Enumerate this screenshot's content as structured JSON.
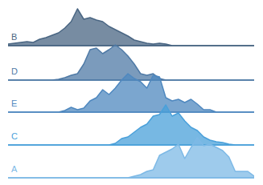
{
  "chart_data": {
    "type": "ridgeline",
    "x": [
      0,
      1,
      2,
      3,
      4,
      5,
      6,
      7,
      8,
      9,
      10,
      11,
      12,
      13,
      14,
      15,
      16,
      17,
      18,
      19,
      20,
      21,
      22,
      23,
      24,
      25,
      26,
      27,
      28,
      29,
      30,
      31,
      32,
      33,
      34,
      35,
      36,
      37,
      38,
      39
    ],
    "xlim": [
      0,
      39
    ],
    "ylim": [
      0,
      50
    ],
    "tick_labels": false,
    "grid": false,
    "series": [
      {
        "name": "B",
        "color": "#4a6683",
        "values": [
          2,
          3,
          4,
          5,
          4,
          8,
          10,
          13,
          16,
          22,
          30,
          46,
          33,
          35,
          32,
          30,
          24,
          20,
          16,
          12,
          7,
          5,
          3,
          2,
          3,
          2,
          0,
          0,
          0,
          0,
          0,
          0,
          0,
          0,
          0,
          0,
          0,
          0,
          0,
          0
        ]
      },
      {
        "name": "D",
        "color": "#4f7aa6",
        "values": [
          0,
          0,
          0,
          0,
          0,
          0,
          0,
          0,
          1,
          3,
          6,
          8,
          20,
          38,
          40,
          33,
          38,
          44,
          38,
          30,
          20,
          8,
          6,
          8,
          2,
          0,
          0,
          0,
          0,
          0,
          0,
          0,
          0,
          0,
          0,
          0,
          0,
          0,
          0,
          0
        ]
      },
      {
        "name": "E",
        "color": "#4f88bf",
        "values": [
          0,
          0,
          0,
          0,
          0,
          0,
          0,
          0,
          0,
          2,
          6,
          3,
          5,
          14,
          18,
          28,
          22,
          30,
          40,
          48,
          42,
          38,
          30,
          46,
          44,
          18,
          14,
          16,
          12,
          16,
          10,
          3,
          3,
          0,
          0,
          0,
          0,
          0,
          0,
          0
        ]
      },
      {
        "name": "C",
        "color": "#4aa0da",
        "values": [
          0,
          0,
          0,
          0,
          0,
          0,
          0,
          0,
          0,
          0,
          0,
          0,
          0,
          0,
          0,
          0,
          0,
          2,
          8,
          10,
          16,
          22,
          26,
          36,
          38,
          50,
          36,
          40,
          30,
          22,
          18,
          10,
          6,
          4,
          3,
          1,
          0,
          0,
          0,
          0
        ]
      },
      {
        "name": "A",
        "color": "#7db9e6",
        "values": [
          0,
          0,
          0,
          0,
          0,
          0,
          0,
          0,
          0,
          0,
          0,
          0,
          0,
          0,
          0,
          0,
          0,
          0,
          0,
          0,
          2,
          4,
          8,
          10,
          28,
          32,
          36,
          42,
          24,
          38,
          50,
          40,
          42,
          38,
          34,
          26,
          8,
          8,
          8,
          2
        ]
      }
    ]
  }
}
